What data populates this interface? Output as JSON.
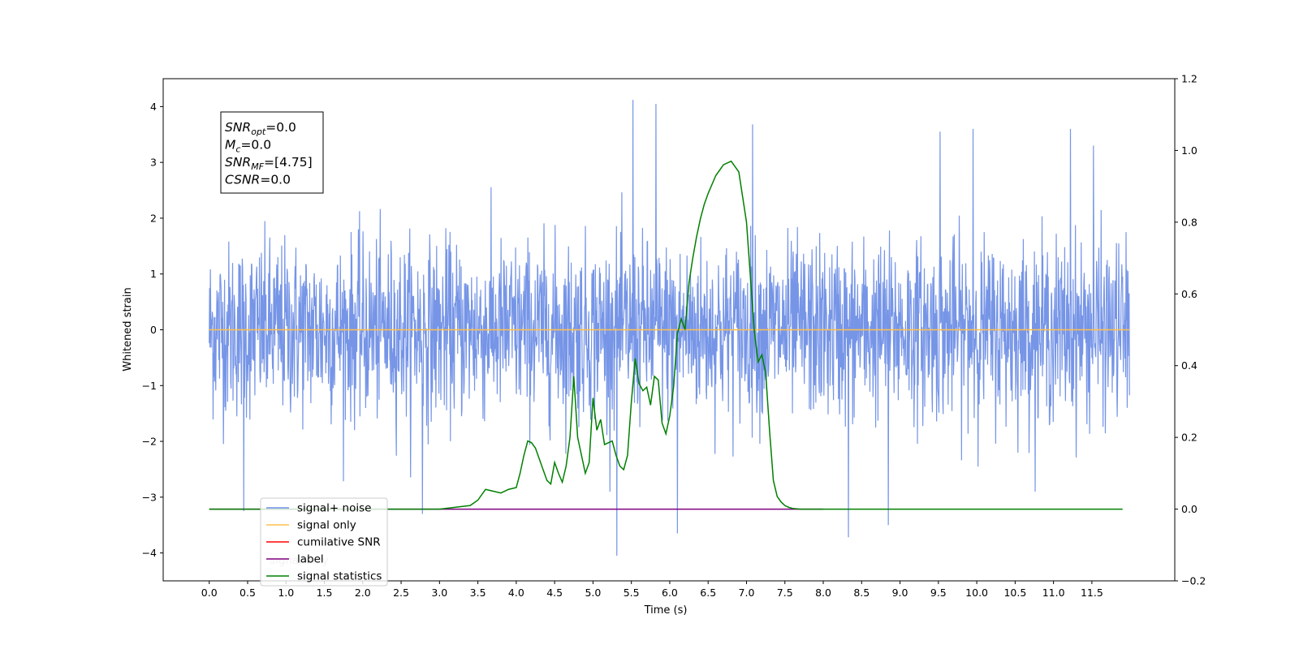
{
  "chart_data": {
    "type": "line",
    "xlabel": "Time (s)",
    "ylabel": "Whitened strain",
    "xlim": [
      -0.6,
      12.58
    ],
    "ylim": [
      -4.5,
      4.5
    ],
    "y2lim": [
      -0.2,
      1.2
    ],
    "x_ticks": [
      "0.0",
      "0.5",
      "1.0",
      "1.5",
      "2.0",
      "2.5",
      "3.0",
      "3.5",
      "4.0",
      "4.5",
      "5.0",
      "5.5",
      "6.0",
      "6.5",
      "7.0",
      "7.5",
      "8.0",
      "8.5",
      "9.0",
      "9.5",
      "10.0",
      "10.5",
      "11.0",
      "11.5"
    ],
    "y_ticks": [
      "−4",
      "−3",
      "−2",
      "−1",
      "0",
      "1",
      "2",
      "3",
      "4"
    ],
    "y2_ticks": [
      "−0.2",
      "0.0",
      "0.2",
      "0.4",
      "0.6",
      "0.8",
      "1.0",
      "1.2"
    ],
    "x_tick_values": [
      0,
      0.5,
      1,
      1.5,
      2,
      2.5,
      3,
      3.5,
      4,
      4.5,
      5,
      5.5,
      6,
      6.5,
      7,
      7.5,
      8,
      8.5,
      9,
      9.5,
      10,
      10.5,
      11,
      11.5
    ],
    "y_tick_values": [
      -4,
      -3,
      -2,
      -1,
      0,
      1,
      2,
      3,
      4
    ],
    "y2_tick_values": [
      -0.2,
      0,
      0.2,
      0.4,
      0.6,
      0.8,
      1.0,
      1.2
    ],
    "grid": false,
    "legend_position": "lower-left",
    "colors": {
      "noise": "#6f8fe6",
      "signal": "#ffc04d",
      "snr": "#ff0000",
      "label": "#800080",
      "stats": "#008000",
      "axis": "#000000"
    },
    "series": [
      {
        "name": "signal+ noise",
        "axis": "left",
        "x_range": [
          0.0,
          11.99
        ],
        "envelope_typical": [
          -1.7,
          1.6
        ],
        "spikes_high": [
          [
            5.52,
            4.12
          ],
          [
            5.82,
            4.05
          ],
          [
            7.08,
            3.68
          ],
          [
            9.52,
            3.55
          ],
          [
            9.95,
            3.6
          ],
          [
            11.22,
            3.6
          ],
          [
            11.52,
            3.3
          ]
        ],
        "spikes_low": [
          [
            5.31,
            -4.05
          ],
          [
            6.1,
            -3.65
          ],
          [
            8.33,
            -3.72
          ],
          [
            8.85,
            -3.5
          ],
          [
            2.78,
            -3.3
          ],
          [
            0.45,
            -3.25
          ]
        ]
      },
      {
        "name": "signal only",
        "axis": "left",
        "x": [
          0.0,
          11.99
        ],
        "y": [
          0.0,
          0.0
        ]
      },
      {
        "name": "cumilative SNR",
        "axis": "left",
        "x": [],
        "y": []
      },
      {
        "name": "label",
        "axis": "right",
        "x": [
          0.0,
          8.0
        ],
        "y": [
          0.0,
          0.0
        ]
      },
      {
        "name": "signal statistics",
        "axis": "right",
        "x": [
          0.0,
          2.5,
          3.0,
          3.2,
          3.4,
          3.5,
          3.6,
          3.7,
          3.8,
          3.9,
          4.0,
          4.05,
          4.1,
          4.15,
          4.2,
          4.25,
          4.3,
          4.35,
          4.4,
          4.45,
          4.5,
          4.55,
          4.6,
          4.65,
          4.7,
          4.75,
          4.8,
          4.85,
          4.9,
          4.95,
          5.0,
          5.05,
          5.1,
          5.15,
          5.2,
          5.25,
          5.3,
          5.35,
          5.4,
          5.45,
          5.5,
          5.55,
          5.6,
          5.65,
          5.7,
          5.75,
          5.8,
          5.85,
          5.9,
          5.95,
          6.0,
          6.05,
          6.1,
          6.15,
          6.2,
          6.25,
          6.3,
          6.35,
          6.4,
          6.45,
          6.5,
          6.6,
          6.7,
          6.8,
          6.9,
          7.0,
          7.05,
          7.1,
          7.15,
          7.2,
          7.25,
          7.3,
          7.35,
          7.4,
          7.45,
          7.5,
          7.55,
          7.6,
          7.7,
          7.8,
          7.9,
          8.0,
          8.5,
          11.9
        ],
        "y": [
          0.0,
          0.0,
          0.0,
          0.005,
          0.01,
          0.025,
          0.055,
          0.05,
          0.045,
          0.055,
          0.06,
          0.1,
          0.15,
          0.19,
          0.185,
          0.17,
          0.14,
          0.11,
          0.08,
          0.07,
          0.13,
          0.1,
          0.075,
          0.12,
          0.2,
          0.37,
          0.2,
          0.15,
          0.1,
          0.13,
          0.31,
          0.22,
          0.25,
          0.18,
          0.185,
          0.19,
          0.15,
          0.12,
          0.11,
          0.15,
          0.3,
          0.42,
          0.35,
          0.33,
          0.34,
          0.29,
          0.37,
          0.36,
          0.24,
          0.21,
          0.26,
          0.34,
          0.49,
          0.53,
          0.5,
          0.63,
          0.7,
          0.76,
          0.81,
          0.85,
          0.88,
          0.93,
          0.96,
          0.97,
          0.94,
          0.8,
          0.65,
          0.5,
          0.41,
          0.43,
          0.38,
          0.22,
          0.08,
          0.035,
          0.02,
          0.01,
          0.005,
          0.002,
          0.0,
          0.0,
          0.0,
          0.0,
          0.0,
          0.0
        ]
      }
    ],
    "annotation": {
      "lines": [
        {
          "sym": "SNR",
          "sub": "opt",
          "rest": "=0.0"
        },
        {
          "sym": "M",
          "sub": "c",
          "rest": "=0.0"
        },
        {
          "sym": "SNR",
          "sub": "MF",
          "rest": "=[4.75]"
        },
        {
          "sym": "CSNR",
          "sub": "",
          "rest": "=0.0"
        }
      ]
    },
    "legend": [
      "signal+ noise",
      "signal only",
      "cumilative SNR",
      "label",
      "signal statistics"
    ],
    "legend_hidden_text": "signal only"
  }
}
